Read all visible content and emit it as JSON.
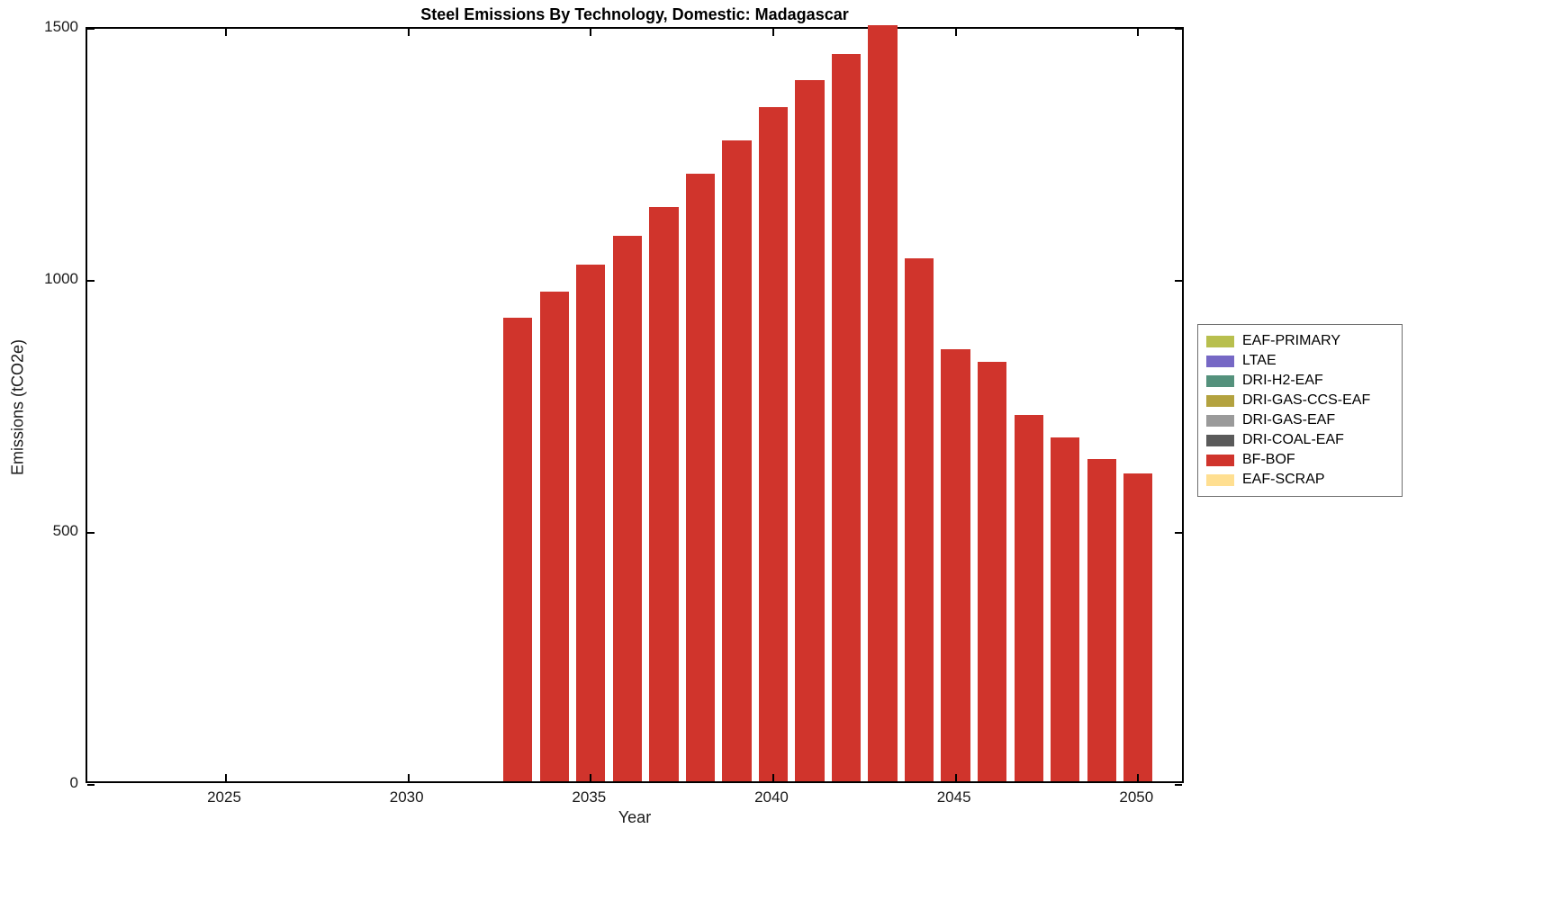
{
  "chart_data": {
    "type": "bar",
    "title": "Steel Emissions By Technology, Domestic: Madagascar",
    "xlabel": "Year",
    "ylabel": "Emissions (tCO2e)",
    "x": [
      2033,
      2034,
      2035,
      2036,
      2037,
      2038,
      2039,
      2040,
      2041,
      2042,
      2043,
      2044,
      2045,
      2046,
      2047,
      2048,
      2049,
      2050
    ],
    "series": [
      {
        "name": "BF-BOF",
        "color": "#d0342c",
        "values": [
          920,
          972,
          1025,
          1082,
          1140,
          1205,
          1272,
          1338,
          1392,
          1443,
          1500,
          1037,
          857,
          832,
          727,
          682,
          639,
          611
        ]
      }
    ],
    "xlim": [
      2021.2,
      2051.3
    ],
    "ylim": [
      0,
      1500
    ],
    "xticks": [
      2025,
      2030,
      2035,
      2040,
      2045,
      2050
    ],
    "yticks": [
      0,
      500,
      1000,
      1500
    ],
    "bar_width_years": 0.8,
    "grid": false,
    "axis_color": "#000000",
    "legend": {
      "position": "right-outside",
      "entries": [
        {
          "label": "EAF-PRIMARY",
          "color": "#b8bf4e"
        },
        {
          "label": "LTAE",
          "color": "#7668c5"
        },
        {
          "label": "DRI-H2-EAF",
          "color": "#54917c"
        },
        {
          "label": "DRI-GAS-CCS-EAF",
          "color": "#b3a23f"
        },
        {
          "label": "DRI-GAS-EAF",
          "color": "#9a9a9a"
        },
        {
          "label": "DRI-COAL-EAF",
          "color": "#5a5a5a"
        },
        {
          "label": "BF-BOF",
          "color": "#d0342c"
        },
        {
          "label": "EAF-SCRAP",
          "color": "#ffdf91"
        }
      ]
    }
  }
}
